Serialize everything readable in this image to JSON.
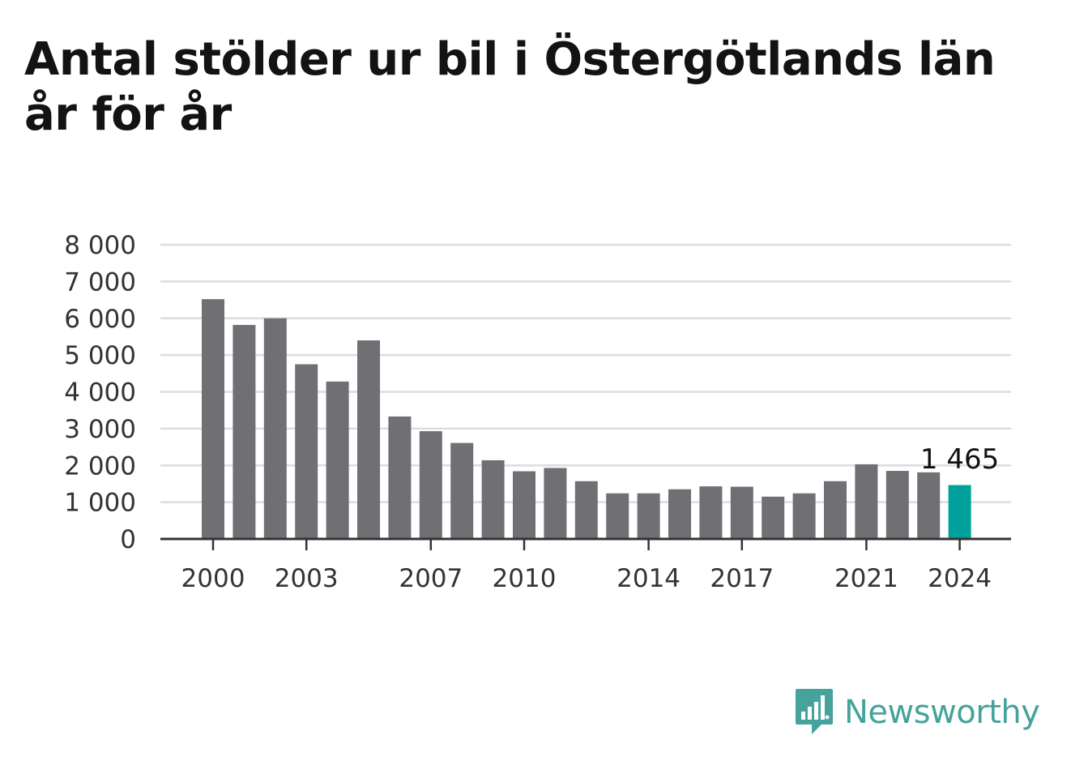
{
  "chart_data": {
    "type": "bar",
    "title": "Antal stölder ur bil i Östergötlands län år för år",
    "xlabel": "",
    "ylabel": "",
    "ylim": [
      0,
      8000
    ],
    "y_ticks": [
      0,
      1000,
      2000,
      3000,
      4000,
      5000,
      6000,
      7000,
      8000
    ],
    "y_tick_labels": [
      "0",
      "1 000",
      "2 000",
      "3 000",
      "4 000",
      "5 000",
      "6 000",
      "7 000",
      "8 000"
    ],
    "categories": [
      "2000",
      "2001",
      "2002",
      "2003",
      "2004",
      "2005",
      "2006",
      "2007",
      "2008",
      "2009",
      "2010",
      "2011",
      "2012",
      "2013",
      "2014",
      "2015",
      "2016",
      "2017",
      "2018",
      "2019",
      "2020",
      "2021",
      "2022",
      "2023",
      "2024"
    ],
    "x_tick_labels": [
      "2000",
      "2003",
      "2007",
      "2010",
      "2014",
      "2017",
      "2021",
      "2024"
    ],
    "values": [
      6520,
      5820,
      6000,
      4750,
      4280,
      5400,
      3330,
      2930,
      2610,
      2140,
      1840,
      1930,
      1570,
      1240,
      1240,
      1350,
      1430,
      1420,
      1150,
      1240,
      1570,
      2030,
      1850,
      1810,
      1465
    ],
    "highlight_category": "2024",
    "highlight_label": "1 465",
    "grid": true,
    "legend": "none",
    "colors": {
      "bar": "#706f74",
      "highlight": "#00a19a",
      "grid": "#dddddd",
      "axis": "#333333"
    }
  },
  "brand": {
    "name": "Newsworthy",
    "icon": "newsworthy-logo-icon",
    "color": "#46a39b"
  }
}
